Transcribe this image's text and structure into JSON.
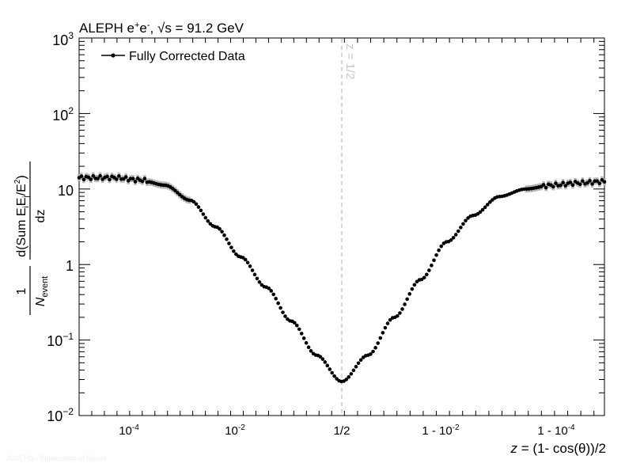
{
  "chart_data": {
    "type": "scatter",
    "title": "ALEPH e+e-, √s = 91.2 GeV",
    "title_parts": {
      "experiment": "ALEPH",
      "process": "e+e-",
      "energy": "√s = 91.2 GeV"
    },
    "xlabel": "z = (1- cos(θ))/2",
    "ylabel": {
      "numerator_prefix": "1",
      "denominator": "N_event",
      "quantity": "d(Sum E_i E_j/E^2)",
      "differential": "dz"
    },
    "x_scale": "double-log (log z below 1/2, log (1-z) above 1/2)",
    "x_tick_labels": [
      "10^-4",
      "10^-2",
      "1/2",
      "1 - 10^-2",
      "1 - 10^-4"
    ],
    "y_scale": "log",
    "ylim": [
      0.01,
      1000
    ],
    "y_tick_labels": [
      {
        "value": 0.01,
        "base": "10",
        "exp": "−2"
      },
      {
        "value": 0.1,
        "base": "10",
        "exp": "−1"
      },
      {
        "value": 1,
        "base": "1",
        "exp": ""
      },
      {
        "value": 10,
        "base": "10",
        "exp": ""
      },
      {
        "value": 100,
        "base": "10",
        "exp": "2"
      },
      {
        "value": 1000,
        "base": "10",
        "exp": "3"
      }
    ],
    "legend": {
      "position": "top-left",
      "entries": [
        "Fully Corrected Data"
      ]
    },
    "annotations": [
      {
        "text": "z = 1/2",
        "style": "vertical dashed line at z = 1/2"
      }
    ],
    "series": [
      {
        "name": "Fully Corrected Data",
        "note": "x = signed log10 coordinate (log10 z for z<1/2, -log10(1-z) offset for z>1/2); y = log10 of value",
        "x": [
          -5.0,
          -4.5,
          -4.0,
          -3.5,
          -3.0,
          -2.5,
          -2.0,
          -1.5,
          -1.0,
          -0.5,
          0.0,
          0.5,
          1.0,
          1.5,
          2.0,
          2.5,
          3.0,
          3.5,
          4.0,
          4.5,
          5.0
        ],
        "y_log10": [
          1.15,
          1.15,
          1.12,
          1.05,
          0.85,
          0.5,
          0.1,
          -0.3,
          -0.75,
          -1.2,
          -1.55,
          -1.2,
          -0.7,
          -0.2,
          0.3,
          0.65,
          0.9,
          1.0,
          1.05,
          1.08,
          1.1
        ]
      }
    ]
  },
  "footer": "2025 HS · Finalization of Result"
}
